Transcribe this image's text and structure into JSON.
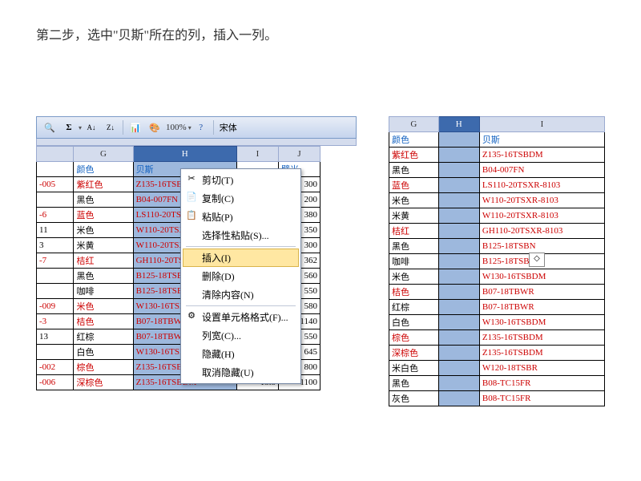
{
  "instruction": "第二步，选中\"贝斯\"所在的列，插入一列。",
  "toolbar": {
    "zoom": "100%",
    "font": "宋体"
  },
  "left": {
    "cols": [
      "G",
      "H",
      "I",
      "J"
    ],
    "sel_col": 1,
    "headers": [
      "颜色",
      "贝斯",
      "",
      "壁米"
    ],
    "rows": [
      {
        "id": "-005",
        "color": "紫红色",
        "ccls": "c-red",
        "code": "Z135-16TSBDM",
        "v1": "",
        "v2": "300"
      },
      {
        "id": "",
        "color": "黑色",
        "ccls": "",
        "code": "B04-007FN",
        "v1": "",
        "v2": "200"
      },
      {
        "id": "-6",
        "color": "蓝色",
        "ccls": "c-red",
        "code": "LS110-20TSXR",
        "v1": "",
        "v2": "380"
      },
      {
        "id": "11",
        "color": "米色",
        "ccls": "",
        "code": "W110-20TSXR",
        "v1": "",
        "v2": "350"
      },
      {
        "id": "3",
        "color": "米黄",
        "ccls": "",
        "code": "W110-20TSXR",
        "v1": "",
        "v2": "300"
      },
      {
        "id": "-7",
        "color": "桔红",
        "ccls": "c-red",
        "code": "GH110-20TSXR",
        "v1": "",
        "v2": "362"
      },
      {
        "id": "",
        "color": "黑色",
        "ccls": "",
        "code": "B125-18TSBN",
        "v1": "",
        "v2": "560"
      },
      {
        "id": "",
        "color": "咖啡",
        "ccls": "",
        "code": "B125-18TSBN",
        "v1": "",
        "v2": "550"
      },
      {
        "id": "-009",
        "color": "米色",
        "ccls": "c-red",
        "code": "W130-16TSBDM",
        "v1": "",
        "v2": "580"
      },
      {
        "id": "-3",
        "color": "桔色",
        "ccls": "c-red",
        "code": "B07-18TBWR",
        "v1": "",
        "v2": "1140"
      },
      {
        "id": "13",
        "color": "红棕",
        "ccls": "",
        "code": "B07-18TBWR",
        "v1": "7.8",
        "v2": "550"
      },
      {
        "id": "",
        "color": "白色",
        "ccls": "",
        "code": "W130-16TSBDM",
        "v1": "13",
        "v2": "645"
      },
      {
        "id": "-002",
        "color": "棕色",
        "ccls": "c-red",
        "code": "Z135-16TSBDM",
        "v1": "13.5",
        "v2": "800"
      },
      {
        "id": "-006",
        "color": "深棕色",
        "ccls": "c-red",
        "code": "Z135-16TSBDM",
        "v1": "13.5",
        "v2": "1100"
      }
    ]
  },
  "right": {
    "cols": [
      "G",
      "H",
      "I"
    ],
    "sel_col": 1,
    "hdr_left": "颜色",
    "hdr_right": "贝斯",
    "rows": [
      {
        "color": "紫红色",
        "ccls": "c-red",
        "code": "Z135-16TSBDM"
      },
      {
        "color": "黑色",
        "ccls": "",
        "code": "B04-007FN"
      },
      {
        "color": "蓝色",
        "ccls": "c-red",
        "code": "LS110-20TSXR-8103"
      },
      {
        "color": "米色",
        "ccls": "",
        "code": "W110-20TSXR-8103"
      },
      {
        "color": "米黄",
        "ccls": "",
        "code": "W110-20TSXR-8103"
      },
      {
        "color": "桔红",
        "ccls": "c-red",
        "code": "GH110-20TSXR-8103"
      },
      {
        "color": "黑色",
        "ccls": "",
        "code": "B125-18TSBN"
      },
      {
        "color": "咖啡",
        "ccls": "",
        "code": "B125-18TSBN"
      },
      {
        "color": "米色",
        "ccls": "",
        "code": "W130-16TSBDM"
      },
      {
        "color": "桔色",
        "ccls": "c-red",
        "code": "B07-18TBWR"
      },
      {
        "color": "红棕",
        "ccls": "",
        "code": "B07-18TBWR"
      },
      {
        "color": "白色",
        "ccls": "",
        "code": "W130-16TSBDM"
      },
      {
        "color": "棕色",
        "ccls": "c-red",
        "code": "Z135-16TSBDM"
      },
      {
        "color": "深棕色",
        "ccls": "c-red",
        "code": "Z135-16TSBDM"
      },
      {
        "color": "米白色",
        "ccls": "",
        "code": "W120-18TSBR"
      },
      {
        "color": "黑色",
        "ccls": "",
        "code": "B08-TC15FR"
      },
      {
        "color": "灰色",
        "ccls": "",
        "code": "B08-TC15FR"
      }
    ]
  },
  "menu": [
    {
      "ico": "✂",
      "label": "剪切(T)"
    },
    {
      "ico": "📄",
      "label": "复制(C)"
    },
    {
      "ico": "📋",
      "label": "粘贴(P)"
    },
    {
      "label": "选择性粘贴(S)..."
    },
    {
      "sep": true
    },
    {
      "label": "插入(I)",
      "hl": true
    },
    {
      "label": "删除(D)"
    },
    {
      "label": "清除内容(N)"
    },
    {
      "sep": true
    },
    {
      "ico": "⚙",
      "label": "设置单元格格式(F)..."
    },
    {
      "label": "列宽(C)..."
    },
    {
      "label": "隐藏(H)"
    },
    {
      "label": "取消隐藏(U)"
    }
  ]
}
